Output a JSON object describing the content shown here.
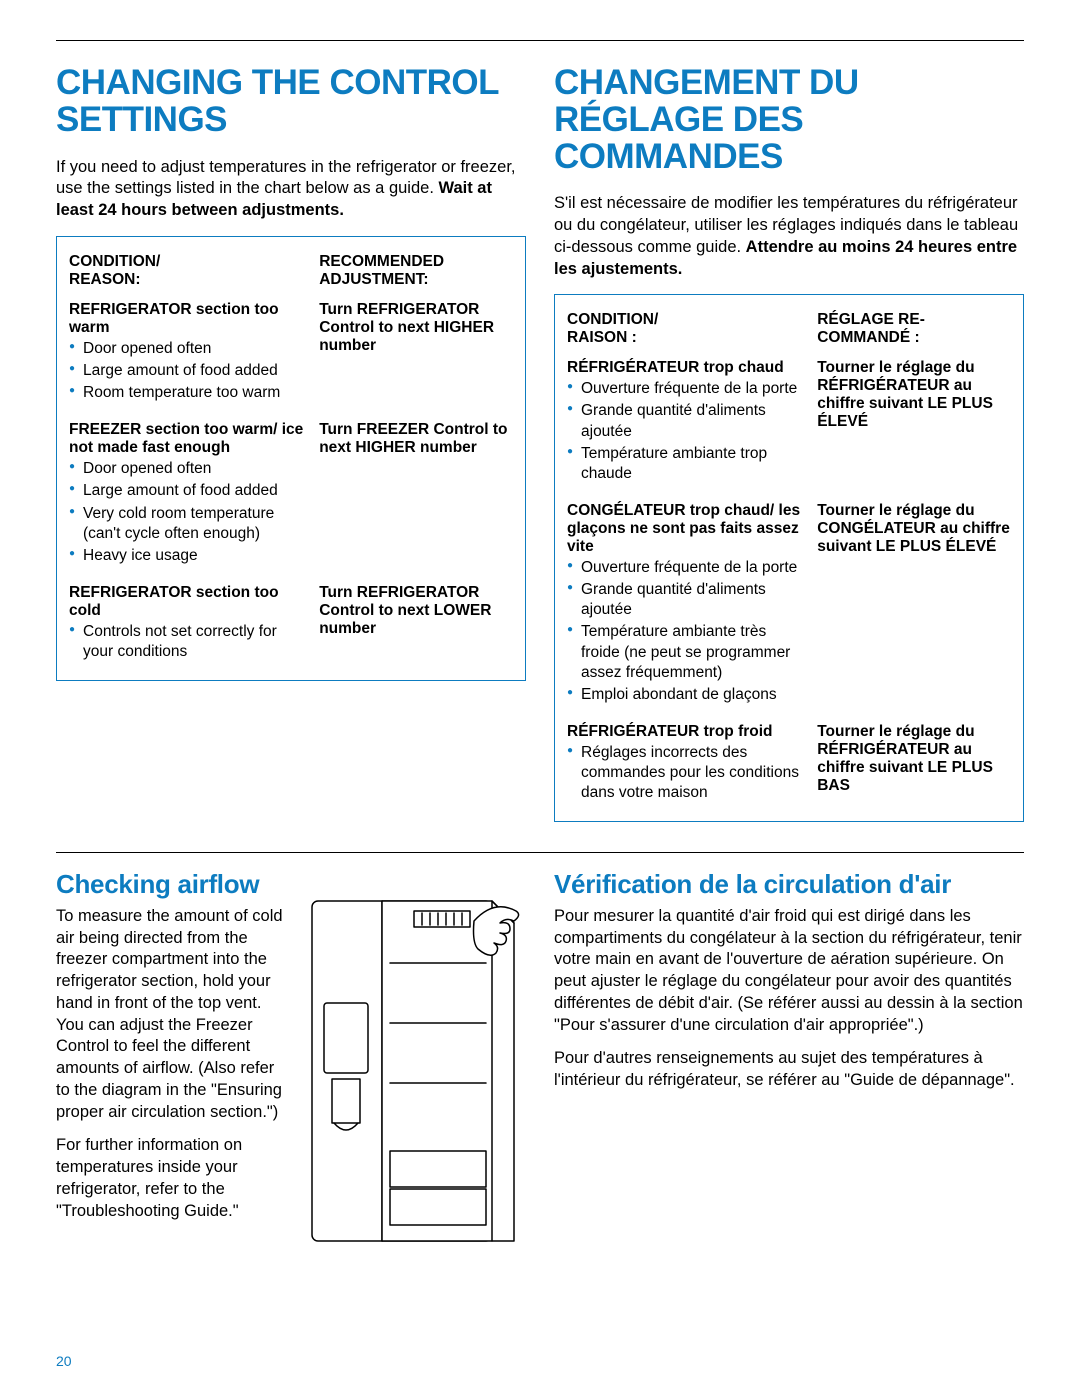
{
  "colors": {
    "accent": "#0d7cc0",
    "text": "#000000",
    "bg": "#ffffff"
  },
  "page_number": "20",
  "english": {
    "title": "CHANGING THE CONTROL SETTINGS",
    "intro_a": "If you need to adjust temperatures in the refrigerator or freezer, use the settings listed in the chart below as a guide. ",
    "intro_b": "Wait at least 24 hours between adjustments.",
    "hdr_condition": "CONDITION/\nREASON:",
    "hdr_adjust": "RECOMMENDED\nADJUSTMENT:",
    "rows": [
      {
        "cond_title": "REFRIGERATOR section too warm",
        "bullets": [
          "Door opened often",
          "Large amount of food added",
          "Room temperature too warm"
        ],
        "adjust": "Turn REFRIGERATOR Control to next HIGHER number"
      },
      {
        "cond_title": "FREEZER section too warm/ ice not made fast enough",
        "bullets": [
          "Door opened often",
          "Large amount of food added",
          "Very cold room temperature (can't cycle often enough)",
          "Heavy ice usage"
        ],
        "adjust": "Turn FREEZER Control to next HIGHER number"
      },
      {
        "cond_title": "REFRIGERATOR section too cold",
        "bullets": [
          "Controls not set correctly for your conditions"
        ],
        "adjust": "Turn REFRIGERATOR Control to next LOWER number"
      }
    ],
    "airflow_title": "Checking airflow",
    "airflow_p1": "To measure the amount of cold air being directed from the freezer compartment into the refrigerator section, hold your hand in front of the top vent. You can adjust the Freezer Control to feel the different amounts of airflow. (Also refer to the diagram in the \"Ensuring proper air circulation section.\")",
    "airflow_p2": "For further information on temperatures inside your refrigerator, refer to the \"Troubleshooting Guide.\""
  },
  "french": {
    "title": "CHANGEMENT DU RÉGLAGE DES COMMANDES",
    "intro_a": "S'il est nécessaire de modifier les températures du réfrigérateur ou du congélateur, utiliser les réglages indiqués dans le tableau ci-dessous comme guide. ",
    "intro_b": "Attendre au moins 24 heures entre les ajustements.",
    "hdr_condition": "CONDITION/\nRAISON :",
    "hdr_adjust": "RÉGLAGE RE-\nCOMMANDÉ :",
    "rows": [
      {
        "cond_title": "RÉFRIGÉRATEUR trop chaud",
        "bullets": [
          "Ouverture fréquente de la porte",
          "Grande quantité d'aliments ajoutée",
          "Température ambiante trop chaude"
        ],
        "adjust": "Tourner le réglage du RÉFRIGÉRATEUR au chiffre suivant LE PLUS ÉLEVÉ"
      },
      {
        "cond_title": "CONGÉLATEUR trop chaud/ les glaçons ne sont pas faits assez vite",
        "bullets": [
          "Ouverture fréquente de la porte",
          "Grande quantité d'aliments ajoutée",
          "Température ambiante très froide (ne peut se programmer assez fréquemment)",
          "Emploi abondant de glaçons"
        ],
        "adjust": "Tourner le réglage du CONGÉLATEUR au chiffre suivant LE PLUS ÉLEVÉ"
      },
      {
        "cond_title": "RÉFRIGÉRATEUR trop froid",
        "bullets": [
          "Réglages incorrects des commandes pour les conditions dans votre maison"
        ],
        "adjust": "Tourner le réglage du RÉFRIGÉRATEUR au chiffre suivant LE PLUS BAS"
      }
    ],
    "airflow_title": "Vérification de la circulation d'air",
    "airflow_p1": "Pour mesurer la quantité d'air froid qui est dirigé dans les compartiments du congélateur à la section du réfrigérateur, tenir votre main en avant de l'ouverture de aération supérieure. On peut ajuster le réglage du congélateur pour avoir des quantités différentes de débit d'air. (Se référer aussi au dessin à la section \"Pour s'assurer d'une circulation d'air appropriée\".)",
    "airflow_p2": "Pour d'autres renseignements au sujet des températures à l'intérieur du réfrigérateur, se référer au \"Guide de dépannage\"."
  },
  "diagram": {
    "type": "line-drawing",
    "subject": "side-by-side refrigerator with hand at top vent",
    "stroke": "#000000",
    "stroke_width": 1.5,
    "fill": "#ffffff"
  }
}
